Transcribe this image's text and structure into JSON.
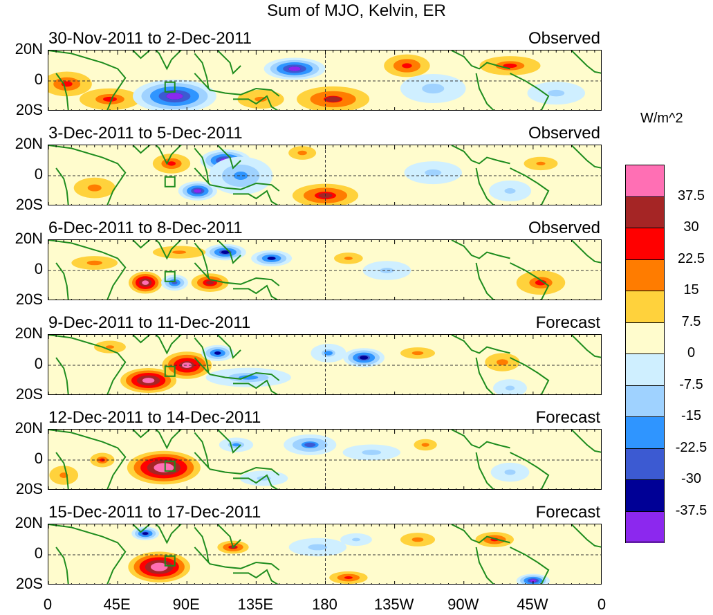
{
  "chart_data": {
    "type": "heatmap",
    "title": "Sum of MJO, Kelvin, ER",
    "units_label": "W/m^2",
    "y_ticks": [
      "20N",
      "0",
      "20S"
    ],
    "x_ticks": [
      "0",
      "45E",
      "90E",
      "135E",
      "180",
      "135W",
      "90W",
      "45W",
      "0"
    ],
    "x_range": [
      0,
      360
    ],
    "y_range": [
      -20,
      20
    ],
    "panels": [
      {
        "label": "30-Nov-2011 to 2-Dec-2011",
        "type": "Observed",
        "anomalies": [
          {
            "lon": 12,
            "lat": -2,
            "w": 20,
            "h": 10,
            "v": 20
          },
          {
            "lon": 40,
            "lat": -12,
            "w": 25,
            "h": 9,
            "v": 18
          },
          {
            "lon": 82,
            "lat": -10,
            "w": 30,
            "h": 12,
            "v": -40
          },
          {
            "lon": 160,
            "lat": 8,
            "w": 22,
            "h": 8,
            "v": -40
          },
          {
            "lon": 185,
            "lat": -12,
            "w": 28,
            "h": 10,
            "v": 24
          },
          {
            "lon": 233,
            "lat": 10,
            "w": 18,
            "h": 9,
            "v": 22
          },
          {
            "lon": 138,
            "lat": -12,
            "w": 22,
            "h": 9,
            "v": 12
          },
          {
            "lon": 300,
            "lat": 10,
            "w": 25,
            "h": 8,
            "v": 18
          },
          {
            "lon": 250,
            "lat": -5,
            "w": 40,
            "h": 18,
            "v": -8
          },
          {
            "lon": 330,
            "lat": -8,
            "w": 30,
            "h": 12,
            "v": -10
          }
        ]
      },
      {
        "label": "3-Dec-2011 to 5-Dec-2011",
        "type": "Observed",
        "anomalies": [
          {
            "lon": 115,
            "lat": 10,
            "w": 18,
            "h": 8,
            "v": -40
          },
          {
            "lon": 97,
            "lat": -10,
            "w": 14,
            "h": 7,
            "v": -38
          },
          {
            "lon": 125,
            "lat": 0,
            "w": 25,
            "h": 15,
            "v": -22
          },
          {
            "lon": 180,
            "lat": -13,
            "w": 25,
            "h": 9,
            "v": 26
          },
          {
            "lon": 30,
            "lat": -8,
            "w": 18,
            "h": 9,
            "v": 15
          },
          {
            "lon": 80,
            "lat": 8,
            "w": 15,
            "h": 8,
            "v": 20
          },
          {
            "lon": 165,
            "lat": 15,
            "w": 12,
            "h": 6,
            "v": 15
          },
          {
            "lon": 320,
            "lat": 8,
            "w": 15,
            "h": 6,
            "v": 14
          },
          {
            "lon": 250,
            "lat": 2,
            "w": 30,
            "h": 12,
            "v": -10
          },
          {
            "lon": 300,
            "lat": -10,
            "w": 20,
            "h": 10,
            "v": -12
          }
        ]
      },
      {
        "label": "6-Dec-2011 to 8-Dec-2011",
        "type": "Observed",
        "anomalies": [
          {
            "lon": 63,
            "lat": -8,
            "w": 12,
            "h": 8,
            "v": 40
          },
          {
            "lon": 105,
            "lat": -8,
            "w": 14,
            "h": 7,
            "v": 28
          },
          {
            "lon": 115,
            "lat": 12,
            "w": 15,
            "h": 6,
            "v": -36
          },
          {
            "lon": 145,
            "lat": 8,
            "w": 15,
            "h": 6,
            "v": -32
          },
          {
            "lon": 82,
            "lat": -8,
            "w": 10,
            "h": 6,
            "v": -30
          },
          {
            "lon": 85,
            "lat": 12,
            "w": 25,
            "h": 6,
            "v": 12
          },
          {
            "lon": 320,
            "lat": -8,
            "w": 20,
            "h": 10,
            "v": 18
          },
          {
            "lon": 30,
            "lat": 5,
            "w": 20,
            "h": 6,
            "v": 15
          },
          {
            "lon": 220,
            "lat": 0,
            "w": 25,
            "h": 10,
            "v": -10
          },
          {
            "lon": 195,
            "lat": 8,
            "w": 15,
            "h": 6,
            "v": 10
          }
        ]
      },
      {
        "label": "9-Dec-2011 to 11-Dec-2011",
        "type": "Forecast",
        "anomalies": [
          {
            "lon": 65,
            "lat": -10,
            "w": 20,
            "h": 9,
            "v": 42
          },
          {
            "lon": 90,
            "lat": 0,
            "w": 18,
            "h": 10,
            "v": 36
          },
          {
            "lon": 110,
            "lat": 8,
            "w": 12,
            "h": 6,
            "v": -32
          },
          {
            "lon": 205,
            "lat": 5,
            "w": 15,
            "h": 7,
            "v": -36
          },
          {
            "lon": 130,
            "lat": -8,
            "w": 35,
            "h": 8,
            "v": -18
          },
          {
            "lon": 182,
            "lat": 8,
            "w": 15,
            "h": 8,
            "v": -16
          },
          {
            "lon": 240,
            "lat": 8,
            "w": 15,
            "h": 5,
            "v": 15
          },
          {
            "lon": 295,
            "lat": 2,
            "w": 15,
            "h": 8,
            "v": 15
          },
          {
            "lon": 300,
            "lat": -15,
            "w": 15,
            "h": 8,
            "v": -14
          },
          {
            "lon": 40,
            "lat": 12,
            "w": 15,
            "h": 6,
            "v": 12
          }
        ]
      },
      {
        "label": "12-Dec-2011 to 14-Dec-2011",
        "type": "Forecast",
        "anomalies": [
          {
            "lon": 75,
            "lat": -5,
            "w": 26,
            "h": 12,
            "v": 45
          },
          {
            "lon": 170,
            "lat": 10,
            "w": 20,
            "h": 8,
            "v": -26
          },
          {
            "lon": 210,
            "lat": 5,
            "w": 25,
            "h": 7,
            "v": -15
          },
          {
            "lon": 122,
            "lat": 10,
            "w": 14,
            "h": 6,
            "v": -18
          },
          {
            "lon": 245,
            "lat": 10,
            "w": 10,
            "h": 5,
            "v": 15
          },
          {
            "lon": 35,
            "lat": 0,
            "w": 10,
            "h": 6,
            "v": 18
          },
          {
            "lon": 10,
            "lat": -10,
            "w": 15,
            "h": 10,
            "v": 10
          },
          {
            "lon": 300,
            "lat": -8,
            "w": 20,
            "h": 10,
            "v": -10
          },
          {
            "lon": 140,
            "lat": -12,
            "w": 25,
            "h": 8,
            "v": -10
          }
        ]
      },
      {
        "label": "15-Dec-2011 to 17-Dec-2011",
        "type": "Forecast",
        "anomalies": [
          {
            "lon": 72,
            "lat": -8,
            "w": 22,
            "h": 11,
            "v": 45
          },
          {
            "lon": 63,
            "lat": 14,
            "w": 10,
            "h": 5,
            "v": -35
          },
          {
            "lon": 120,
            "lat": 5,
            "w": 12,
            "h": 5,
            "v": 25
          },
          {
            "lon": 195,
            "lat": -15,
            "w": 15,
            "h": 5,
            "v": 22
          },
          {
            "lon": 315,
            "lat": -17,
            "w": 12,
            "h": 5,
            "v": -38
          },
          {
            "lon": 290,
            "lat": 10,
            "w": 15,
            "h": 6,
            "v": 22
          },
          {
            "lon": 240,
            "lat": 10,
            "w": 15,
            "h": 6,
            "v": 15
          },
          {
            "lon": 175,
            "lat": 5,
            "w": 25,
            "h": 8,
            "v": -15
          },
          {
            "lon": 200,
            "lat": 10,
            "w": 15,
            "h": 6,
            "v": -12
          }
        ]
      }
    ],
    "colorbar": {
      "labels": [
        "37.5",
        "30",
        "22.5",
        "15",
        "7.5",
        "0",
        "-7.5",
        "-15",
        "-22.5",
        "-30",
        "-37.5"
      ],
      "colors": [
        "#ff6fb4",
        "#a52525",
        "#ff0000",
        "#ff7c00",
        "#ffd23c",
        "#fffccd",
        "#cfefff",
        "#9fd2ff",
        "#2f95ff",
        "#3c5ad2",
        "#000096",
        "#8c28ee"
      ]
    },
    "coastline_color": "#1e8c1e",
    "ref_line_color": "#333333"
  }
}
